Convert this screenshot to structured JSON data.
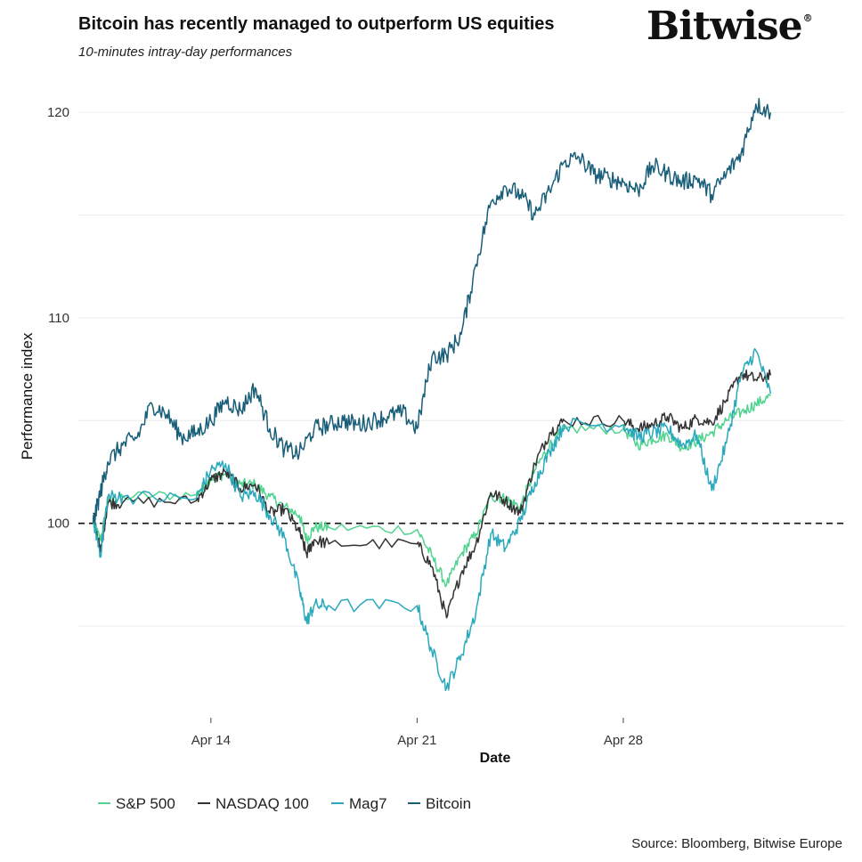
{
  "header": {
    "title": "Bitcoin has recently managed to outperform US equities",
    "subtitle": "10-minutes intray-day performances",
    "logo": "Bitwise",
    "logo_mark": "®"
  },
  "footer": {
    "source": "Source: Bloomberg, Bitwise Europe"
  },
  "chart_data": {
    "type": "line",
    "title": "Bitcoin has recently managed to outperform US equities",
    "subtitle": "10-minutes intray-day performances",
    "xlabel": "Date",
    "ylabel": "Performance index",
    "x_ticks": [
      {
        "date": "2025-04-14",
        "label": "Apr 14"
      },
      {
        "date": "2025-04-21",
        "label": "Apr 21"
      },
      {
        "date": "2025-04-28",
        "label": "Apr 28"
      }
    ],
    "y_ticks": [
      100,
      110,
      120
    ],
    "xlim": [
      "2025-04-09T12:00",
      "2025-05-05T12:00"
    ],
    "ylim": [
      90.8,
      122
    ],
    "reference_line": {
      "y": 100,
      "style": "dashed"
    },
    "grid": true,
    "legend_position": "bottom",
    "series": [
      {
        "name": "S&P 500",
        "color": "#52d38f",
        "points": [
          [
            "2025-04-10T00:00",
            100.0
          ],
          [
            "2025-04-10T06:00",
            99.2
          ],
          [
            "2025-04-10T12:00",
            101.0
          ],
          [
            "2025-04-11T00:00",
            101.3
          ],
          [
            "2025-04-13T12:00",
            101.4
          ],
          [
            "2025-04-14T00:00",
            102.2
          ],
          [
            "2025-04-14T12:00",
            102.4
          ],
          [
            "2025-04-15T00:00",
            101.9
          ],
          [
            "2025-04-15T12:00",
            101.9
          ],
          [
            "2025-04-16T00:00",
            101.3
          ],
          [
            "2025-04-16T12:00",
            100.8
          ],
          [
            "2025-04-17T00:00",
            100.4
          ],
          [
            "2025-04-17T06:00",
            99.2
          ],
          [
            "2025-04-17T12:00",
            99.8
          ],
          [
            "2025-04-18T00:00",
            99.8
          ],
          [
            "2025-04-21T00:00",
            99.7
          ],
          [
            "2025-04-21T12:00",
            98.4
          ],
          [
            "2025-04-22T00:00",
            97.0
          ],
          [
            "2025-04-22T12:00",
            98.5
          ],
          [
            "2025-04-23T00:00",
            99.5
          ],
          [
            "2025-04-23T12:00",
            101.3
          ],
          [
            "2025-04-24T00:00",
            101.2
          ],
          [
            "2025-04-24T12:00",
            100.8
          ],
          [
            "2025-04-25T00:00",
            102.6
          ],
          [
            "2025-04-25T12:00",
            103.8
          ],
          [
            "2025-04-26T00:00",
            104.6
          ],
          [
            "2025-04-28T00:00",
            104.6
          ],
          [
            "2025-04-28T12:00",
            103.8
          ],
          [
            "2025-04-29T00:00",
            104.1
          ],
          [
            "2025-04-29T12:00",
            104.3
          ],
          [
            "2025-04-30T00:00",
            103.7
          ],
          [
            "2025-04-30T12:00",
            104.0
          ],
          [
            "2025-05-01T00:00",
            104.4
          ],
          [
            "2025-05-01T12:00",
            105.0
          ],
          [
            "2025-05-02T00:00",
            105.4
          ],
          [
            "2025-05-02T12:00",
            105.8
          ],
          [
            "2025-05-03T00:00",
            106.2
          ]
        ]
      },
      {
        "name": "NASDAQ 100",
        "color": "#333333",
        "points": [
          [
            "2025-04-10T00:00",
            100.5
          ],
          [
            "2025-04-10T06:00",
            98.6
          ],
          [
            "2025-04-10T12:00",
            101.0
          ],
          [
            "2025-04-11T00:00",
            101.0
          ],
          [
            "2025-04-13T12:00",
            101.1
          ],
          [
            "2025-04-14T00:00",
            102.1
          ],
          [
            "2025-04-14T12:00",
            102.5
          ],
          [
            "2025-04-15T00:00",
            101.7
          ],
          [
            "2025-04-15T12:00",
            101.9
          ],
          [
            "2025-04-16T00:00",
            100.5
          ],
          [
            "2025-04-16T12:00",
            100.7
          ],
          [
            "2025-04-17T00:00",
            99.6
          ],
          [
            "2025-04-17T06:00",
            98.5
          ],
          [
            "2025-04-17T12:00",
            99.2
          ],
          [
            "2025-04-18T00:00",
            99.0
          ],
          [
            "2025-04-21T00:00",
            99.0
          ],
          [
            "2025-04-21T12:00",
            97.9
          ],
          [
            "2025-04-22T00:00",
            95.4
          ],
          [
            "2025-04-22T12:00",
            97.6
          ],
          [
            "2025-04-23T00:00",
            99.0
          ],
          [
            "2025-04-23T12:00",
            101.5
          ],
          [
            "2025-04-24T00:00",
            101.1
          ],
          [
            "2025-04-24T12:00",
            100.5
          ],
          [
            "2025-04-25T00:00",
            102.9
          ],
          [
            "2025-04-25T12:00",
            104.4
          ],
          [
            "2025-04-26T00:00",
            105.0
          ],
          [
            "2025-04-28T00:00",
            105.0
          ],
          [
            "2025-04-28T12:00",
            104.6
          ],
          [
            "2025-04-29T00:00",
            104.8
          ],
          [
            "2025-04-29T12:00",
            105.2
          ],
          [
            "2025-04-30T00:00",
            104.6
          ],
          [
            "2025-04-30T12:00",
            105.1
          ],
          [
            "2025-05-01T00:00",
            104.9
          ],
          [
            "2025-05-01T12:00",
            106.0
          ],
          [
            "2025-05-02T00:00",
            107.3
          ],
          [
            "2025-05-02T12:00",
            107.0
          ],
          [
            "2025-05-03T00:00",
            107.2
          ]
        ]
      },
      {
        "name": "Mag7",
        "color": "#2aa9bd",
        "points": [
          [
            "2025-04-10T00:00",
            100.2
          ],
          [
            "2025-04-10T06:00",
            98.5
          ],
          [
            "2025-04-10T12:00",
            101.3
          ],
          [
            "2025-04-11T00:00",
            101.3
          ],
          [
            "2025-04-13T12:00",
            101.2
          ],
          [
            "2025-04-14T00:00",
            102.6
          ],
          [
            "2025-04-14T12:00",
            102.9
          ],
          [
            "2025-04-15T00:00",
            101.3
          ],
          [
            "2025-04-15T12:00",
            101.5
          ],
          [
            "2025-04-16T00:00",
            100.4
          ],
          [
            "2025-04-16T12:00",
            99.3
          ],
          [
            "2025-04-17T00:00",
            96.8
          ],
          [
            "2025-04-17T06:00",
            95.2
          ],
          [
            "2025-04-17T12:00",
            96.0
          ],
          [
            "2025-04-18T00:00",
            96.0
          ],
          [
            "2025-04-21T00:00",
            96.0
          ],
          [
            "2025-04-21T12:00",
            93.8
          ],
          [
            "2025-04-22T00:00",
            92.0
          ],
          [
            "2025-04-22T12:00",
            93.6
          ],
          [
            "2025-04-23T00:00",
            95.7
          ],
          [
            "2025-04-23T12:00",
            99.5
          ],
          [
            "2025-04-24T00:00",
            98.8
          ],
          [
            "2025-04-24T12:00",
            100.1
          ],
          [
            "2025-04-25T00:00",
            102.0
          ],
          [
            "2025-04-25T12:00",
            103.5
          ],
          [
            "2025-04-26T00:00",
            104.8
          ],
          [
            "2025-04-28T00:00",
            104.8
          ],
          [
            "2025-04-28T12:00",
            104.2
          ],
          [
            "2025-04-29T00:00",
            104.4
          ],
          [
            "2025-04-29T12:00",
            104.6
          ],
          [
            "2025-04-30T00:00",
            103.8
          ],
          [
            "2025-04-30T12:00",
            104.3
          ],
          [
            "2025-05-01T00:00",
            101.6
          ],
          [
            "2025-05-01T12:00",
            103.9
          ],
          [
            "2025-05-02T00:00",
            107.2
          ],
          [
            "2025-05-02T12:00",
            108.4
          ],
          [
            "2025-05-03T00:00",
            106.3
          ]
        ]
      },
      {
        "name": "Bitcoin",
        "color": "#1a5f79",
        "points": [
          [
            "2025-04-10T00:00",
            100.0
          ],
          [
            "2025-04-10T06:00",
            101.5
          ],
          [
            "2025-04-10T12:00",
            103.0
          ],
          [
            "2025-04-11T00:00",
            103.8
          ],
          [
            "2025-04-11T12:00",
            104.2
          ],
          [
            "2025-04-12T00:00",
            105.8
          ],
          [
            "2025-04-12T12:00",
            105.3
          ],
          [
            "2025-04-13T00:00",
            104.2
          ],
          [
            "2025-04-13T12:00",
            104.4
          ],
          [
            "2025-04-14T00:00",
            105.0
          ],
          [
            "2025-04-14T12:00",
            106.0
          ],
          [
            "2025-04-15T00:00",
            105.5
          ],
          [
            "2025-04-15T12:00",
            106.6
          ],
          [
            "2025-04-16T00:00",
            104.6
          ],
          [
            "2025-04-16T12:00",
            103.6
          ],
          [
            "2025-04-17T00:00",
            103.4
          ],
          [
            "2025-04-17T12:00",
            104.6
          ],
          [
            "2025-04-18T00:00",
            104.8
          ],
          [
            "2025-04-18T12:00",
            105.0
          ],
          [
            "2025-04-19T00:00",
            104.8
          ],
          [
            "2025-04-19T12:00",
            105.0
          ],
          [
            "2025-04-20T00:00",
            105.2
          ],
          [
            "2025-04-20T12:00",
            105.4
          ],
          [
            "2025-04-21T00:00",
            104.6
          ],
          [
            "2025-04-21T12:00",
            108.1
          ],
          [
            "2025-04-22T00:00",
            108.2
          ],
          [
            "2025-04-22T12:00",
            109.2
          ],
          [
            "2025-04-23T00:00",
            112.6
          ],
          [
            "2025-04-23T12:00",
            115.6
          ],
          [
            "2025-04-24T00:00",
            116.4
          ],
          [
            "2025-04-24T12:00",
            116.0
          ],
          [
            "2025-04-25T00:00",
            115.0
          ],
          [
            "2025-04-25T12:00",
            116.2
          ],
          [
            "2025-04-26T00:00",
            117.6
          ],
          [
            "2025-04-26T12:00",
            117.8
          ],
          [
            "2025-04-27T00:00",
            117.0
          ],
          [
            "2025-04-27T12:00",
            116.8
          ],
          [
            "2025-04-28T00:00",
            116.6
          ],
          [
            "2025-04-28T12:00",
            116.2
          ],
          [
            "2025-04-29T00:00",
            117.4
          ],
          [
            "2025-04-29T12:00",
            117.0
          ],
          [
            "2025-04-30T00:00",
            116.6
          ],
          [
            "2025-04-30T12:00",
            116.8
          ],
          [
            "2025-05-01T00:00",
            116.0
          ],
          [
            "2025-05-01T12:00",
            117.0
          ],
          [
            "2025-05-02T00:00",
            118.0
          ],
          [
            "2025-05-02T12:00",
            120.4
          ],
          [
            "2025-05-03T00:00",
            120.0
          ]
        ]
      }
    ]
  }
}
